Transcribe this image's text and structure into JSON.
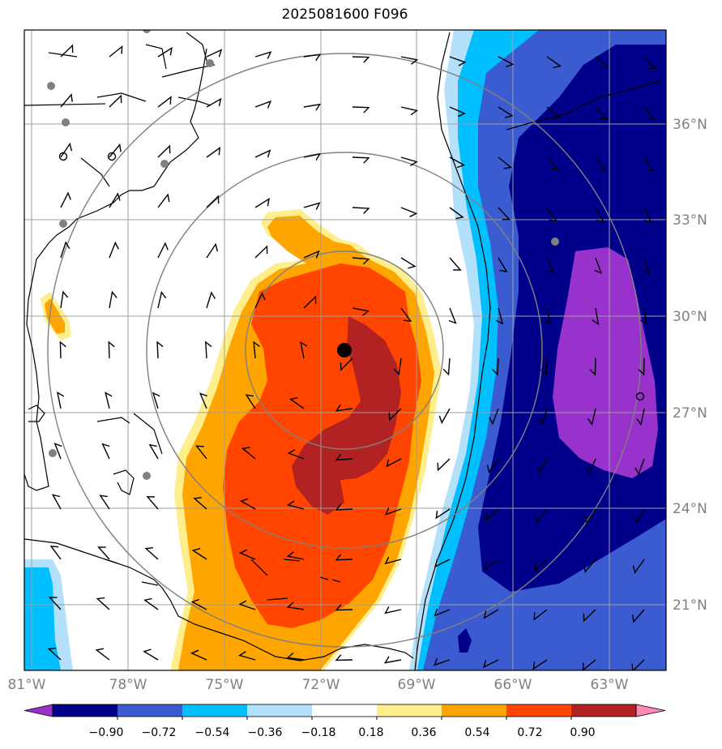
{
  "title": "2025081600 F096",
  "lon_labels": [
    "81°W",
    "78°W",
    "75°W",
    "72°W",
    "69°W",
    "66°W",
    "63°W"
  ],
  "lat_labels": [
    "21°N",
    "24°N",
    "27°N",
    "30°N",
    "33°N",
    "36°N"
  ],
  "colorbar": {
    "labels": [
      "−0.90",
      "−0.72",
      "−0.54",
      "−0.36",
      "−0.18",
      "0.18",
      "0.36",
      "0.54",
      "0.72",
      "0.90"
    ],
    "colors": [
      "#9932cc",
      "#00008b",
      "#3b5bd1",
      "#00bfff",
      "#b3e0fb",
      "#ffffff",
      "#ffee8c",
      "#ffa500",
      "#ff4500",
      "#b22222",
      "#ff88b8"
    ]
  },
  "colors": {
    "range_rings": "#808080",
    "gridlines": "#a0a0a0",
    "storm_center": "#000000",
    "station_markers": "#808080"
  }
}
